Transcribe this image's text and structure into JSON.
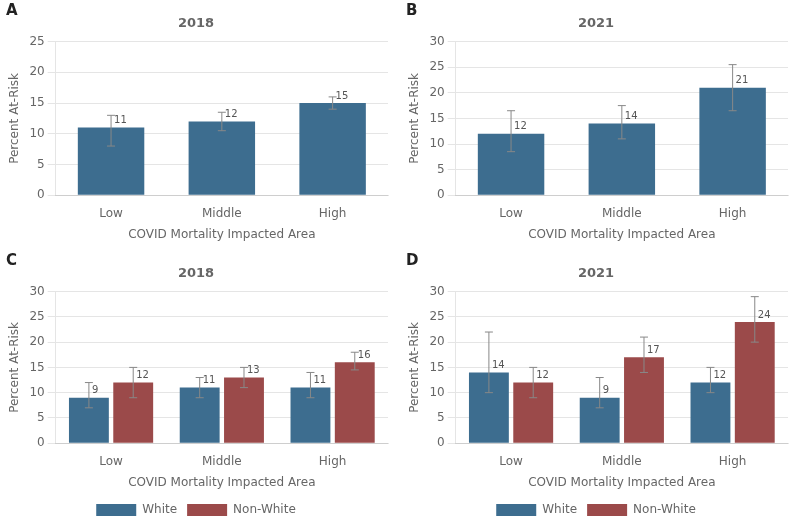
{
  "chart_data": [
    {
      "type": "bar",
      "title": "2018",
      "annotations": [
        "A"
      ],
      "categories": [
        "Low",
        "Middle",
        "High"
      ],
      "values": [
        11,
        12,
        15
      ],
      "errors_upper": [
        2.0,
        1.5,
        1.0
      ],
      "errors_lower": [
        3.0,
        1.5,
        1.0
      ],
      "color": "#3d6d8f",
      "xlabel": "COVID Mortality Impacted Area",
      "ylabel": "Percent At-Risk",
      "ylim": [
        0,
        25
      ],
      "yticks": [
        0,
        5,
        10,
        15,
        20,
        25
      ],
      "grid": true,
      "data_labels": true
    },
    {
      "type": "bar",
      "title": "2021",
      "annotations": [
        "B"
      ],
      "categories": [
        "Low",
        "Middle",
        "High"
      ],
      "values": [
        12,
        14,
        21
      ],
      "errors_upper": [
        4.5,
        3.5,
        4.5
      ],
      "errors_lower": [
        3.5,
        3.0,
        4.5
      ],
      "color": "#3d6d8f",
      "xlabel": "COVID Mortality Impacted Area",
      "ylabel": "Percent At-Risk",
      "ylim": [
        0,
        30
      ],
      "yticks": [
        0,
        5,
        10,
        15,
        20,
        25,
        30
      ],
      "grid": true,
      "data_labels": true
    },
    {
      "type": "bar",
      "title": "2018",
      "annotations": [
        "C"
      ],
      "categories": [
        "Low",
        "Middle",
        "High"
      ],
      "series": [
        {
          "name": "White",
          "color": "#3d6d8f",
          "values": [
            9,
            11,
            11
          ],
          "errors_upper": [
            3.0,
            2.0,
            3.0
          ],
          "errors_lower": [
            2.0,
            2.0,
            2.0
          ]
        },
        {
          "name": "Non-White",
          "color": "#9b4a4a",
          "values": [
            12,
            13,
            16
          ],
          "errors_upper": [
            3.0,
            2.0,
            2.0
          ],
          "errors_lower": [
            3.0,
            2.0,
            1.5
          ]
        }
      ],
      "xlabel": "COVID Mortality Impacted Area",
      "ylabel": "Percent At-Risk",
      "ylim": [
        0,
        30
      ],
      "yticks": [
        0,
        5,
        10,
        15,
        20,
        25,
        30
      ],
      "grid": true,
      "data_labels": true,
      "legend": "bottom"
    },
    {
      "type": "bar",
      "title": "2021",
      "annotations": [
        "D"
      ],
      "categories": [
        "Low",
        "Middle",
        "High"
      ],
      "series": [
        {
          "name": "White",
          "color": "#3d6d8f",
          "values": [
            14,
            9,
            12
          ],
          "errors_upper": [
            8.0,
            4.0,
            3.0
          ],
          "errors_lower": [
            4.0,
            2.0,
            2.0
          ]
        },
        {
          "name": "Non-White",
          "color": "#9b4a4a",
          "values": [
            12,
            17,
            24
          ],
          "errors_upper": [
            3.0,
            4.0,
            5.0
          ],
          "errors_lower": [
            3.0,
            3.0,
            4.0
          ]
        }
      ],
      "xlabel": "COVID Mortality Impacted Area",
      "ylabel": "Percent At-Risk",
      "ylim": [
        0,
        30
      ],
      "yticks": [
        0,
        5,
        10,
        15,
        20,
        25,
        30
      ],
      "grid": true,
      "data_labels": true,
      "legend": "bottom"
    }
  ]
}
